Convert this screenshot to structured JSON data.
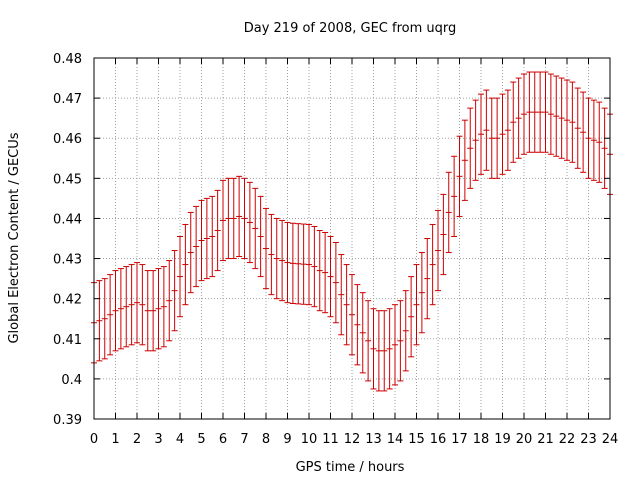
{
  "chart_data": {
    "type": "scatter",
    "title": "Day 219 of 2008, GEC from uqrg",
    "xlabel": "GPS time / hours",
    "ylabel": "Global Electron Content / GECUs",
    "xlim": [
      0,
      24
    ],
    "ylim": [
      0.39,
      0.48
    ],
    "x_ticks": [
      0,
      1,
      2,
      3,
      4,
      5,
      6,
      7,
      8,
      9,
      10,
      11,
      12,
      13,
      14,
      15,
      16,
      17,
      18,
      19,
      20,
      21,
      22,
      23,
      24
    ],
    "y_ticks": [
      0.39,
      0.4,
      0.41,
      0.42,
      0.43,
      0.44,
      0.45,
      0.46,
      0.47,
      0.48
    ],
    "y_tick_labels": [
      "0.39",
      "0.4",
      "0.41",
      "0.42",
      "0.43",
      "0.44",
      "0.45",
      "0.46",
      "0.47",
      "0.48"
    ],
    "grid": true,
    "error_bar": 0.01,
    "series_color": "#cc0000",
    "series": [
      {
        "x": [
          0,
          0.25,
          0.5,
          0.75,
          1,
          1.25,
          1.5,
          1.75,
          2,
          2.25,
          2.5,
          2.75,
          3,
          3.25,
          3.5,
          3.75,
          4,
          4.25,
          4.5,
          4.75,
          5,
          5.25,
          5.5,
          5.75,
          6,
          6.25,
          6.5,
          6.75,
          7,
          7.25,
          7.5,
          7.75,
          8,
          8.25,
          8.5,
          8.75,
          9,
          9.25,
          9.5,
          9.75,
          10,
          10.25,
          10.5,
          10.75,
          11,
          11.25,
          11.5,
          11.75,
          12,
          12.25,
          12.5,
          12.75,
          13,
          13.25,
          13.5,
          13.75,
          14,
          14.25,
          14.5,
          14.75,
          15,
          15.25,
          15.5,
          15.75,
          16,
          16.25,
          16.5,
          16.75,
          17,
          17.25,
          17.5,
          17.75,
          18,
          18.25,
          18.5,
          18.75,
          19,
          19.25,
          19.5,
          19.75,
          20,
          20.25,
          20.5,
          20.75,
          21,
          21.25,
          21.5,
          21.75,
          22,
          22.25,
          22.5,
          22.75,
          23,
          23.25,
          23.5,
          23.75,
          24
        ],
        "y": [
          0.414,
          0.4145,
          0.415,
          0.416,
          0.417,
          0.4175,
          0.418,
          0.4185,
          0.419,
          0.4185,
          0.417,
          0.417,
          0.4175,
          0.418,
          0.4195,
          0.422,
          0.4255,
          0.4285,
          0.4315,
          0.433,
          0.4345,
          0.435,
          0.4355,
          0.437,
          0.4395,
          0.44,
          0.44,
          0.4405,
          0.44,
          0.439,
          0.4375,
          0.4355,
          0.4325,
          0.431,
          0.43,
          0.4295,
          0.429,
          0.4288,
          0.4287,
          0.4286,
          0.4285,
          0.428,
          0.427,
          0.4265,
          0.4255,
          0.424,
          0.421,
          0.4185,
          0.416,
          0.4135,
          0.4115,
          0.4095,
          0.4075,
          0.407,
          0.407,
          0.4075,
          0.4085,
          0.4095,
          0.412,
          0.4155,
          0.4185,
          0.4215,
          0.425,
          0.4285,
          0.432,
          0.436,
          0.4415,
          0.4455,
          0.4505,
          0.4545,
          0.4575,
          0.4595,
          0.461,
          0.462,
          0.46,
          0.46,
          0.461,
          0.462,
          0.464,
          0.465,
          0.466,
          0.4665,
          0.4665,
          0.4665,
          0.4665,
          0.466,
          0.4655,
          0.465,
          0.4645,
          0.464,
          0.4625,
          0.4615,
          0.46,
          0.4595,
          0.459,
          0.4575,
          0.456
        ]
      }
    ]
  }
}
